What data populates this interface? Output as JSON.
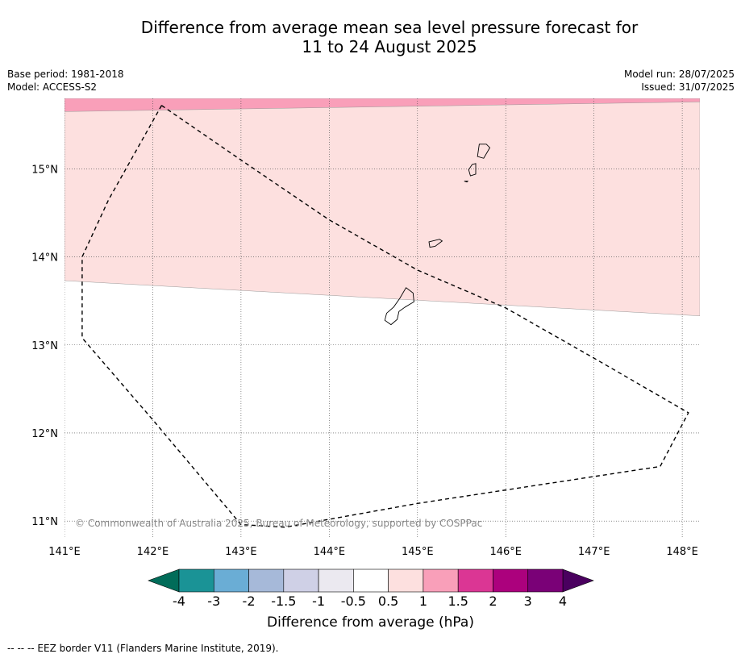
{
  "title": {
    "line1": "Difference from average mean sea level pressure forecast for",
    "line2": "11 to 24 August 2025"
  },
  "meta_left": {
    "base_period": "Base period: 1981-2018",
    "model": "Model: ACCESS-S2"
  },
  "meta_right": {
    "model_run": "Model run: 28/07/2025",
    "issued": "Issued: 31/07/2025"
  },
  "map": {
    "lon_range": [
      141.0,
      148.2
    ],
    "lat_range": [
      10.8,
      15.8
    ],
    "lon_ticks": [
      {
        "value": 141,
        "label": "141°E"
      },
      {
        "value": 142,
        "label": "142°E"
      },
      {
        "value": 143,
        "label": "143°E"
      },
      {
        "value": 144,
        "label": "144°E"
      },
      {
        "value": 145,
        "label": "145°E"
      },
      {
        "value": 146,
        "label": "146°E"
      },
      {
        "value": 147,
        "label": "147°E"
      },
      {
        "value": 148,
        "label": "148°E"
      }
    ],
    "lat_ticks": [
      {
        "value": 15,
        "label": "15°N"
      },
      {
        "value": 14,
        "label": "14°N"
      },
      {
        "value": 13,
        "label": "13°N"
      },
      {
        "value": 12,
        "label": "12°N"
      },
      {
        "value": 11,
        "label": "11°N"
      }
    ],
    "gridlines": true,
    "bands": [
      {
        "range": "1 to 1.5",
        "color": "#f99fb9",
        "boundary": [
          [
            141.0,
            15.65
          ],
          [
            148.2,
            15.76
          ]
        ]
      },
      {
        "range": "0.5 to 1",
        "color": "#fde0df",
        "boundary": [
          [
            141.0,
            13.73
          ],
          [
            148.2,
            13.33
          ]
        ]
      }
    ],
    "eez_border": [
      [
        142.1,
        15.72
      ],
      [
        143.0,
        15.1
      ],
      [
        144.0,
        14.42
      ],
      [
        145.0,
        13.85
      ],
      [
        146.0,
        13.42
      ],
      [
        147.0,
        12.85
      ],
      [
        148.07,
        12.23
      ],
      [
        147.75,
        11.62
      ],
      [
        145.0,
        11.2
      ],
      [
        143.5,
        10.93
      ],
      [
        143.0,
        10.96
      ],
      [
        142.0,
        12.15
      ],
      [
        141.2,
        13.08
      ],
      [
        141.2,
        14.0
      ],
      [
        141.5,
        14.65
      ],
      [
        142.1,
        15.72
      ]
    ],
    "islands": [
      {
        "name": "Saipan",
        "outline": [
          [
            145.7,
            15.28
          ],
          [
            145.78,
            15.28
          ],
          [
            145.82,
            15.24
          ],
          [
            145.75,
            15.12
          ],
          [
            145.68,
            15.14
          ]
        ]
      },
      {
        "name": "Tinian",
        "outline": [
          [
            145.62,
            15.05
          ],
          [
            145.66,
            15.06
          ],
          [
            145.66,
            14.94
          ],
          [
            145.6,
            14.92
          ],
          [
            145.58,
            14.99
          ]
        ]
      },
      {
        "name": "Aguijan",
        "outline": [
          [
            145.53,
            14.86
          ],
          [
            145.57,
            14.86
          ],
          [
            145.56,
            14.85
          ]
        ]
      },
      {
        "name": "Rota",
        "outline": [
          [
            145.13,
            14.17
          ],
          [
            145.25,
            14.2
          ],
          [
            145.28,
            14.18
          ],
          [
            145.2,
            14.12
          ],
          [
            145.14,
            14.11
          ]
        ]
      },
      {
        "name": "Guam",
        "outline": [
          [
            144.87,
            13.65
          ],
          [
            144.95,
            13.59
          ],
          [
            144.96,
            13.49
          ],
          [
            144.86,
            13.43
          ],
          [
            144.79,
            13.38
          ],
          [
            144.77,
            13.29
          ],
          [
            144.7,
            13.23
          ],
          [
            144.63,
            13.28
          ],
          [
            144.65,
            13.36
          ],
          [
            144.73,
            13.43
          ],
          [
            144.8,
            13.53
          ]
        ]
      }
    ],
    "copyright": "© Commonwealth of Australia 2025, Bureau of Meteorology, supported by COSPPac"
  },
  "colorbar": {
    "title": "Difference from average (hPa)",
    "bins": [
      {
        "from": -4,
        "to": -3,
        "color": "#1a9396"
      },
      {
        "from": -3,
        "to": -2,
        "color": "#6aadd5"
      },
      {
        "from": -2,
        "to": -1.5,
        "color": "#a6b9d9"
      },
      {
        "from": -1.5,
        "to": -1,
        "color": "#cfd0e6"
      },
      {
        "from": -1,
        "to": -0.5,
        "color": "#ebe9f0"
      },
      {
        "from": -0.5,
        "to": 0.5,
        "color": "#ffffff"
      },
      {
        "from": 0.5,
        "to": 1,
        "color": "#fde0df"
      },
      {
        "from": 1,
        "to": 1.5,
        "color": "#f99fb9"
      },
      {
        "from": 1.5,
        "to": 2,
        "color": "#db3694"
      },
      {
        "from": 2,
        "to": 3,
        "color": "#ac017d"
      },
      {
        "from": 3,
        "to": 4,
        "color": "#7a0177"
      }
    ],
    "under_color": "#016c59",
    "over_color": "#4a005f",
    "tick_labels": [
      "-4",
      "-3",
      "-2",
      "-1.5",
      "-1",
      "-0.5",
      "0.5",
      "1",
      "1.5",
      "2",
      "3",
      "4"
    ]
  },
  "footer": "--  --  -- EEZ border V11 (Flanders Marine Institute, 2019)."
}
